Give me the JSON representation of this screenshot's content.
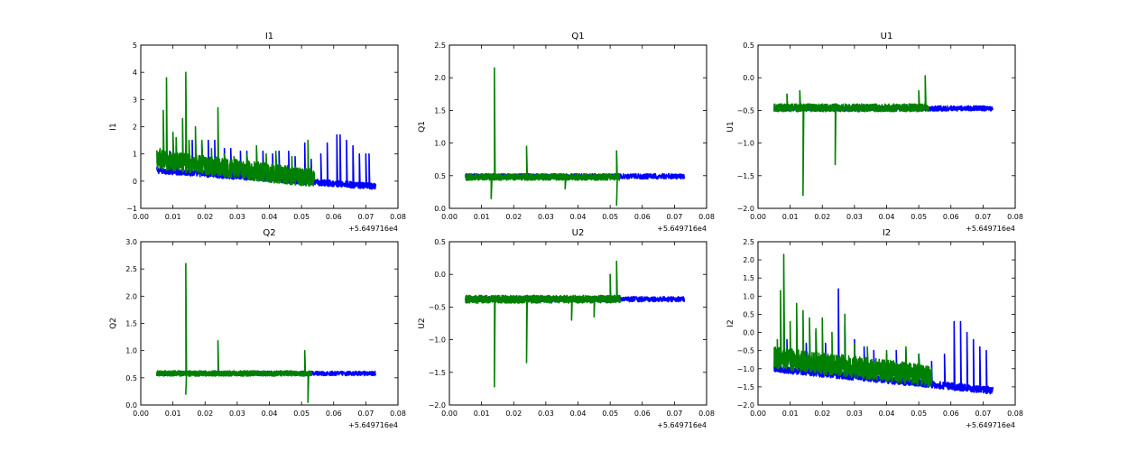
{
  "colors": {
    "series_1": "#0000ff",
    "series_2": "#008000",
    "axes": "#000000",
    "background": "#ffffff"
  },
  "chart_data": [
    {
      "type": "line",
      "title": "I1",
      "xlabel": "",
      "ylabel": "I1",
      "xlim": [
        0.0,
        0.08
      ],
      "ylim": [
        -1,
        5
      ],
      "x_offset_label": "+5.649716e4",
      "x_ticks": [
        "0.00",
        "0.01",
        "0.02",
        "0.03",
        "0.04",
        "0.05",
        "0.06",
        "0.07",
        "0.08"
      ],
      "y_ticks": [
        "−1",
        "0",
        "1",
        "2",
        "3",
        "4",
        "5"
      ],
      "grid": false,
      "series": [
        {
          "color": "#0000ff",
          "x_range": [
            0.005,
            0.073
          ],
          "baseline": [
            0.4,
            -0.2
          ],
          "noise": 0.12,
          "spikes": [
            [
              0.006,
              0.9
            ],
            [
              0.009,
              1.1
            ],
            [
              0.011,
              1.3
            ],
            [
              0.014,
              1.3
            ],
            [
              0.016,
              1.5
            ],
            [
              0.019,
              1.4
            ],
            [
              0.021,
              1.5
            ],
            [
              0.023,
              1.5
            ],
            [
              0.026,
              1.2
            ],
            [
              0.028,
              1.2
            ],
            [
              0.031,
              1.1
            ],
            [
              0.033,
              1.1
            ],
            [
              0.036,
              1.0
            ],
            [
              0.038,
              1.1
            ],
            [
              0.041,
              1.0
            ],
            [
              0.043,
              1.1
            ],
            [
              0.046,
              1.1
            ],
            [
              0.048,
              0.9
            ],
            [
              0.051,
              1.4
            ],
            [
              0.053,
              0.8
            ],
            [
              0.056,
              1.0
            ],
            [
              0.058,
              1.4
            ],
            [
              0.061,
              1.7
            ],
            [
              0.062,
              1.7
            ],
            [
              0.064,
              1.5
            ],
            [
              0.066,
              1.3
            ],
            [
              0.068,
              1.0
            ],
            [
              0.07,
              1.0
            ],
            [
              0.071,
              1.0
            ]
          ]
        },
        {
          "color": "#008000",
          "x_range": [
            0.005,
            0.054
          ],
          "baseline": [
            0.8,
            0.1
          ],
          "noise": 0.35,
          "spikes": [
            [
              0.006,
              1.2
            ],
            [
              0.007,
              2.6
            ],
            [
              0.008,
              3.8
            ],
            [
              0.01,
              1.8
            ],
            [
              0.011,
              1.6
            ],
            [
              0.013,
              2.3
            ],
            [
              0.014,
              4.0
            ],
            [
              0.015,
              1.5
            ],
            [
              0.017,
              2.0
            ],
            [
              0.019,
              1.5
            ],
            [
              0.022,
              1.2
            ],
            [
              0.024,
              2.7
            ],
            [
              0.026,
              1.0
            ],
            [
              0.029,
              0.9
            ],
            [
              0.033,
              1.0
            ],
            [
              0.036,
              1.3
            ],
            [
              0.039,
              1.0
            ],
            [
              0.042,
              1.1
            ],
            [
              0.047,
              0.9
            ],
            [
              0.052,
              1.5
            ]
          ]
        }
      ]
    },
    {
      "type": "line",
      "title": "Q1",
      "xlabel": "",
      "ylabel": "Q1",
      "xlim": [
        0.0,
        0.08
      ],
      "ylim": [
        0.0,
        2.5
      ],
      "x_offset_label": "+5.649716e4",
      "x_ticks": [
        "0.00",
        "0.01",
        "0.02",
        "0.03",
        "0.04",
        "0.05",
        "0.06",
        "0.07",
        "0.08"
      ],
      "y_ticks": [
        "0.0",
        "0.5",
        "1.0",
        "1.5",
        "2.0",
        "2.5"
      ],
      "grid": false,
      "series": [
        {
          "color": "#0000ff",
          "x_range": [
            0.005,
            0.073
          ],
          "baseline": [
            0.49,
            0.49
          ],
          "noise": 0.04,
          "spikes": []
        },
        {
          "color": "#008000",
          "x_range": [
            0.005,
            0.053
          ],
          "baseline": [
            0.48,
            0.48
          ],
          "noise": 0.05,
          "spikes": [
            [
              0.014,
              2.15
            ],
            [
              0.024,
              0.95
            ],
            [
              0.052,
              0.88
            ],
            [
              0.013,
              0.15
            ],
            [
              0.052,
              0.05
            ],
            [
              0.036,
              0.3
            ]
          ]
        }
      ]
    },
    {
      "type": "line",
      "title": "U1",
      "xlabel": "",
      "ylabel": "U1",
      "xlim": [
        0.0,
        0.08
      ],
      "ylim": [
        -2.0,
        0.5
      ],
      "x_offset_label": "+5.649716e4",
      "x_ticks": [
        "0.00",
        "0.01",
        "0.02",
        "0.03",
        "0.04",
        "0.05",
        "0.06",
        "0.07",
        "0.08"
      ],
      "y_ticks": [
        "−2.0",
        "−1.5",
        "−1.0",
        "−0.5",
        "0.0",
        "0.5"
      ],
      "grid": false,
      "series": [
        {
          "color": "#0000ff",
          "x_range": [
            0.005,
            0.073
          ],
          "baseline": [
            -0.47,
            -0.47
          ],
          "noise": 0.04,
          "spikes": []
        },
        {
          "color": "#008000",
          "x_range": [
            0.005,
            0.053
          ],
          "baseline": [
            -0.46,
            -0.46
          ],
          "noise": 0.06,
          "spikes": [
            [
              0.014,
              -1.8
            ],
            [
              0.024,
              -1.33
            ],
            [
              0.009,
              -0.25
            ],
            [
              0.052,
              0.03
            ],
            [
              0.05,
              -0.2
            ],
            [
              0.013,
              -0.2
            ]
          ]
        }
      ]
    },
    {
      "type": "line",
      "title": "Q2",
      "xlabel": "",
      "ylabel": "Q2",
      "xlim": [
        0.0,
        0.08
      ],
      "ylim": [
        0.0,
        3.0
      ],
      "x_offset_label": "+5.649716e4",
      "x_ticks": [
        "0.00",
        "0.01",
        "0.02",
        "0.03",
        "0.04",
        "0.05",
        "0.06",
        "0.07",
        "0.08"
      ],
      "y_ticks": [
        "0.0",
        "0.5",
        "1.0",
        "1.5",
        "2.0",
        "2.5",
        "3.0"
      ],
      "grid": false,
      "series": [
        {
          "color": "#0000ff",
          "x_range": [
            0.005,
            0.073
          ],
          "baseline": [
            0.58,
            0.58
          ],
          "noise": 0.04,
          "spikes": []
        },
        {
          "color": "#008000",
          "x_range": [
            0.005,
            0.053
          ],
          "baseline": [
            0.58,
            0.58
          ],
          "noise": 0.05,
          "spikes": [
            [
              0.014,
              2.6
            ],
            [
              0.024,
              1.18
            ],
            [
              0.051,
              1.0
            ],
            [
              0.052,
              0.05
            ],
            [
              0.014,
              0.2
            ]
          ]
        }
      ]
    },
    {
      "type": "line",
      "title": "U2",
      "xlabel": "",
      "ylabel": "U2",
      "xlim": [
        0.0,
        0.08
      ],
      "ylim": [
        -2.0,
        0.5
      ],
      "x_offset_label": "+5.649716e4",
      "x_ticks": [
        "0.00",
        "0.01",
        "0.02",
        "0.03",
        "0.04",
        "0.05",
        "0.06",
        "0.07",
        "0.08"
      ],
      "y_ticks": [
        "−2.0",
        "−1.5",
        "−1.0",
        "−0.5",
        "0.0",
        "0.5"
      ],
      "grid": false,
      "series": [
        {
          "color": "#0000ff",
          "x_range": [
            0.005,
            0.073
          ],
          "baseline": [
            -0.38,
            -0.38
          ],
          "noise": 0.04,
          "spikes": []
        },
        {
          "color": "#008000",
          "x_range": [
            0.005,
            0.053
          ],
          "baseline": [
            -0.38,
            -0.38
          ],
          "noise": 0.06,
          "spikes": [
            [
              0.014,
              -1.72
            ],
            [
              0.024,
              -1.35
            ],
            [
              0.052,
              0.2
            ],
            [
              0.05,
              0.0
            ],
            [
              0.038,
              -0.7
            ],
            [
              0.045,
              -0.65
            ]
          ]
        }
      ]
    },
    {
      "type": "line",
      "title": "I2",
      "xlabel": "",
      "ylabel": "I2",
      "xlim": [
        0.0,
        0.08
      ],
      "ylim": [
        -2.0,
        2.5
      ],
      "x_offset_label": "+5.649716e4",
      "x_ticks": [
        "0.00",
        "0.01",
        "0.02",
        "0.03",
        "0.04",
        "0.05",
        "0.06",
        "0.07",
        "0.08"
      ],
      "y_ticks": [
        "−2.0",
        "−1.5",
        "−1.0",
        "−0.5",
        "0.0",
        "0.5",
        "1.0",
        "1.5",
        "2.0",
        "2.5"
      ],
      "grid": false,
      "series": [
        {
          "color": "#0000ff",
          "x_range": [
            0.005,
            0.073
          ],
          "baseline": [
            -1.0,
            -1.6
          ],
          "noise": 0.1,
          "spikes": [
            [
              0.009,
              -0.2
            ],
            [
              0.012,
              -0.1
            ],
            [
              0.015,
              -0.3
            ],
            [
              0.018,
              0.0
            ],
            [
              0.021,
              -0.3
            ],
            [
              0.025,
              1.2
            ],
            [
              0.027,
              0.2
            ],
            [
              0.03,
              -0.2
            ],
            [
              0.033,
              -0.4
            ],
            [
              0.036,
              -0.5
            ],
            [
              0.04,
              -0.6
            ],
            [
              0.043,
              -0.5
            ],
            [
              0.046,
              -0.5
            ],
            [
              0.05,
              -0.6
            ],
            [
              0.054,
              -0.8
            ],
            [
              0.058,
              -0.6
            ],
            [
              0.061,
              0.3
            ],
            [
              0.063,
              0.3
            ],
            [
              0.065,
              0.0
            ],
            [
              0.067,
              -0.2
            ],
            [
              0.069,
              -0.4
            ],
            [
              0.071,
              -0.5
            ]
          ]
        },
        {
          "color": "#008000",
          "x_range": [
            0.005,
            0.054
          ],
          "baseline": [
            -0.7,
            -1.2
          ],
          "noise": 0.3,
          "spikes": [
            [
              0.006,
              -0.2
            ],
            [
              0.007,
              1.15
            ],
            [
              0.008,
              2.15
            ],
            [
              0.01,
              0.3
            ],
            [
              0.012,
              0.8
            ],
            [
              0.014,
              0.6
            ],
            [
              0.016,
              0.4
            ],
            [
              0.018,
              0.1
            ],
            [
              0.02,
              0.4
            ],
            [
              0.023,
              0.0
            ],
            [
              0.027,
              0.5
            ],
            [
              0.03,
              -0.3
            ],
            [
              0.034,
              -0.4
            ],
            [
              0.04,
              -0.5
            ],
            [
              0.046,
              -0.4
            ],
            [
              0.05,
              -0.6
            ]
          ]
        }
      ]
    }
  ]
}
